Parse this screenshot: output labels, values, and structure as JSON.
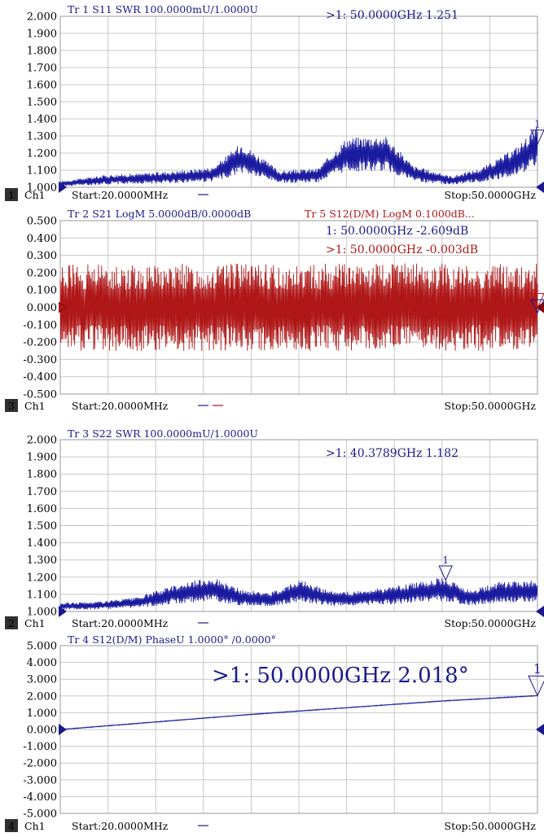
{
  "colors": {
    "blue": "#1b1ba0",
    "red": "#b01818",
    "grid": "#c8c8c8",
    "dark_red": "#8b0000",
    "navy": "#1a1a8c"
  },
  "chart_data": [
    {
      "type": "line",
      "trace_label": "Tr 1  S11 SWR 100.0000mU/1.0000U",
      "marker_readout": ">1:   50.0000GHz 1.251",
      "yticks": [
        "2.000",
        "1.900",
        "1.800",
        "1.700",
        "1.600",
        "1.500",
        "1.400",
        "1.300",
        "1.200",
        "1.100",
        "1.000"
      ],
      "ylim": [
        1.0,
        2.0
      ],
      "xlim_ghz": [
        0.02,
        50.0
      ],
      "channel": {
        "number": "1",
        "label": "Ch1",
        "start": "Start:20.0000MHz",
        "stop": "Stop:50.0000GHz"
      },
      "marker": {
        "label": "1",
        "x_ghz": 50.0,
        "y": 1.251
      },
      "series": [
        {
          "color": "#1b1ba0",
          "ripple": 0.03,
          "x": [
            0.02,
            5,
            8,
            12,
            16,
            19,
            23,
            27,
            30,
            34,
            37,
            41,
            44,
            46,
            48,
            50
          ],
          "y": [
            1.02,
            1.045,
            1.05,
            1.06,
            1.075,
            1.17,
            1.06,
            1.07,
            1.19,
            1.2,
            1.08,
            1.04,
            1.07,
            1.11,
            1.16,
            1.24
          ]
        }
      ]
    },
    {
      "type": "line",
      "trace_label": "Tr 2  S21 LogM 5.0000dB/0.0000dB",
      "trace_label_2": "Tr 5  S12(D/M) LogM 0.1000dB...",
      "marker_readout": "1:   50.0000GHz -2.609dB",
      "marker_readout_2": ">1:   50.0000GHz -0.003dB",
      "yticks": [
        "0.500",
        "0.400",
        "0.300",
        "0.200",
        "0.100",
        "0.000",
        "-0.100",
        "-0.200",
        "-0.300",
        "-0.400",
        "-0.500"
      ],
      "ylim": [
        -0.5,
        0.5
      ],
      "xlim_ghz": [
        0.02,
        50.0
      ],
      "channel": {
        "number": "3",
        "label": "Ch1",
        "start": "Start:20.0000MHz",
        "stop": "Stop:50.0000GHz"
      },
      "marker": {
        "label": "1",
        "x_ghz": 50.0,
        "y": -0.003
      },
      "series": [
        {
          "color": "#1a1a8c",
          "ripple": 0.0,
          "x": [
            0.02,
            50
          ],
          "y": [
            0.0,
            -0.05
          ]
        },
        {
          "color": "#b01818",
          "ripple": 0.01,
          "x": [
            0.02,
            50
          ],
          "y": [
            0.0,
            0.003
          ]
        }
      ]
    },
    {
      "type": "line",
      "trace_label": "Tr 3  S22 SWR 100.0000mU/1.0000U",
      "marker_readout": ">1:   40.3789GHz 1.182",
      "yticks": [
        "2.000",
        "1.900",
        "1.800",
        "1.700",
        "1.600",
        "1.500",
        "1.400",
        "1.300",
        "1.200",
        "1.100",
        "1.000"
      ],
      "ylim": [
        1.0,
        2.0
      ],
      "xlim_ghz": [
        0.02,
        50.0
      ],
      "channel": {
        "number": "2",
        "label": "Ch1",
        "start": "Start:20.0000MHz",
        "stop": "Stop:50.0000GHz"
      },
      "marker": {
        "label": "1",
        "x_ghz": 40.38,
        "y": 1.182
      },
      "series": [
        {
          "color": "#1b1ba0",
          "ripple": 0.03,
          "x": [
            0.02,
            4,
            8,
            12,
            16,
            19,
            22,
            25,
            29,
            32,
            36,
            40,
            43,
            46,
            50
          ],
          "y": [
            1.03,
            1.035,
            1.05,
            1.1,
            1.13,
            1.08,
            1.07,
            1.12,
            1.07,
            1.08,
            1.1,
            1.13,
            1.08,
            1.11,
            1.12
          ]
        }
      ]
    },
    {
      "type": "line",
      "trace_label": "Tr 4  S12(D/M) PhaseU 1.0000° /0.0000°",
      "marker_readout": ">1:   50.0000GHz 2.018°",
      "yticks": [
        "5.000",
        "4.000",
        "3.000",
        "2.000",
        "1.000",
        "0.000",
        "-1.000",
        "-2.000",
        "-3.000",
        "-4.000",
        "-5.000"
      ],
      "ylim": [
        -5.0,
        5.0
      ],
      "xlim_ghz": [
        0.02,
        50.0
      ],
      "channel": {
        "number": "4",
        "label": "Ch1",
        "start": "Start:20.0000MHz",
        "stop": "Stop:50.0000GHz"
      },
      "marker": {
        "label": "1",
        "x_ghz": 50.0,
        "y": 2.018
      },
      "series": [
        {
          "color": "#1b1ba0",
          "ripple": 0.04,
          "x": [
            0.02,
            10,
            20,
            30,
            40,
            50
          ],
          "y": [
            0.0,
            0.45,
            0.9,
            1.3,
            1.7,
            2.02
          ]
        }
      ]
    }
  ]
}
